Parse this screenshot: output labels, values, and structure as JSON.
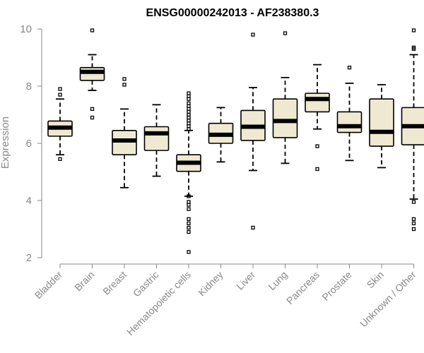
{
  "chart_data": {
    "type": "boxplot",
    "title": "ENSG00000242013 - AF238380.3",
    "ylabel": "Expression",
    "xlabel": "",
    "ylim": [
      2,
      10
    ],
    "yticks": [
      2,
      4,
      6,
      8,
      10
    ],
    "categories": [
      "Bladder",
      "Brain",
      "Breast",
      "Gastric",
      "Hematopoietic cells",
      "Kidney",
      "Liver",
      "Lung",
      "Pancreas",
      "Prostate",
      "Skin",
      "Unknown / Other"
    ],
    "boxes": [
      {
        "category": "Bladder",
        "whisker_low": 5.6,
        "q1": 6.25,
        "median": 6.55,
        "q3": 6.78,
        "whisker_high": 7.55,
        "outliers": [
          5.45,
          7.7,
          7.9
        ]
      },
      {
        "category": "Brain",
        "whisker_low": 7.85,
        "q1": 8.2,
        "median": 8.5,
        "q3": 8.65,
        "whisker_high": 9.1,
        "outliers": [
          6.9,
          7.2,
          9.95
        ]
      },
      {
        "category": "Breast",
        "whisker_low": 4.45,
        "q1": 5.6,
        "median": 6.1,
        "q3": 6.45,
        "whisker_high": 7.2,
        "outliers": [
          8.05,
          8.25
        ]
      },
      {
        "category": "Gastric",
        "whisker_low": 4.85,
        "q1": 5.75,
        "median": 6.35,
        "q3": 6.58,
        "whisker_high": 7.35,
        "outliers": []
      },
      {
        "category": "Hematopoietic cells",
        "whisker_low": 4.15,
        "q1": 5.02,
        "median": 5.32,
        "q3": 5.6,
        "whisker_high": 6.45,
        "outliers": [
          2.2,
          2.9,
          3.05,
          3.2,
          3.35,
          3.7,
          3.85,
          3.95,
          4.15,
          6.5,
          6.6,
          6.7,
          6.8,
          6.9,
          7.0,
          7.1,
          7.2,
          7.3,
          7.4,
          7.55,
          7.65,
          7.75
        ]
      },
      {
        "category": "Kidney",
        "whisker_low": 5.35,
        "q1": 6.0,
        "median": 6.3,
        "q3": 6.7,
        "whisker_high": 7.25,
        "outliers": []
      },
      {
        "category": "Liver",
        "whisker_low": 5.05,
        "q1": 6.1,
        "median": 6.58,
        "q3": 7.15,
        "whisker_high": 7.95,
        "outliers": [
          3.05,
          9.8
        ]
      },
      {
        "category": "Lung",
        "whisker_low": 5.3,
        "q1": 6.2,
        "median": 6.78,
        "q3": 7.55,
        "whisker_high": 8.3,
        "outliers": [
          9.85
        ]
      },
      {
        "category": "Pancreas",
        "whisker_low": 6.5,
        "q1": 7.1,
        "median": 7.55,
        "q3": 7.75,
        "whisker_high": 8.75,
        "outliers": [
          5.1,
          5.9
        ]
      },
      {
        "category": "Prostate",
        "whisker_low": 5.4,
        "q1": 6.38,
        "median": 6.6,
        "q3": 7.1,
        "whisker_high": 8.1,
        "outliers": [
          8.65
        ]
      },
      {
        "category": "Skin",
        "whisker_low": 5.15,
        "q1": 5.9,
        "median": 6.4,
        "q3": 7.55,
        "whisker_high": 8.05,
        "outliers": []
      },
      {
        "category": "Unknown / Other",
        "whisker_low": 4.05,
        "q1": 5.95,
        "median": 6.6,
        "q3": 7.25,
        "whisker_high": 9.1,
        "outliers": [
          3.0,
          3.2,
          3.35,
          3.95,
          9.3,
          9.35,
          9.95
        ]
      }
    ]
  }
}
